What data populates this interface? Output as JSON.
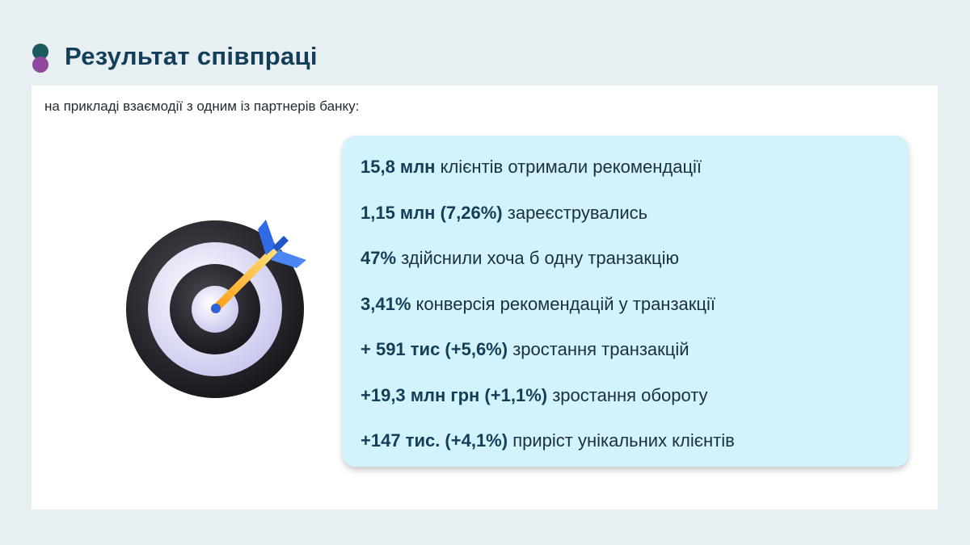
{
  "header": {
    "title": "Результат співпраці"
  },
  "subtitle": "на прикладі взаємодії з одним із партнерів банку:",
  "illustration": {
    "icon": "target-with-arrow-icon"
  },
  "stats": [
    {
      "value": "15,8 млн",
      "text": "клієнтів отримали рекомендації"
    },
    {
      "value": "1,15 млн (7,26%)",
      "text": "зареєструвались"
    },
    {
      "value": "47%",
      "text": "здійснили хоча б одну транзакцію"
    },
    {
      "value": "3,41%",
      "text": "конверсія рекомендацій у транзакції"
    },
    {
      "value": "+ 591 тис (+5,6%)",
      "text": "зростання транзакцій"
    },
    {
      "value": "+19,3 млн грн (+1,1%)",
      "text": "зростання обороту"
    },
    {
      "value": "+147 тис. (+4,1%)",
      "text": "приріст унікальних клієнтів"
    }
  ],
  "colors": {
    "title": "#123f57",
    "dot_teal": "#1c5a5f",
    "dot_purple": "#8f4aa0",
    "stats_background": "#d3f3fc",
    "page_background": "#e8eff2"
  }
}
